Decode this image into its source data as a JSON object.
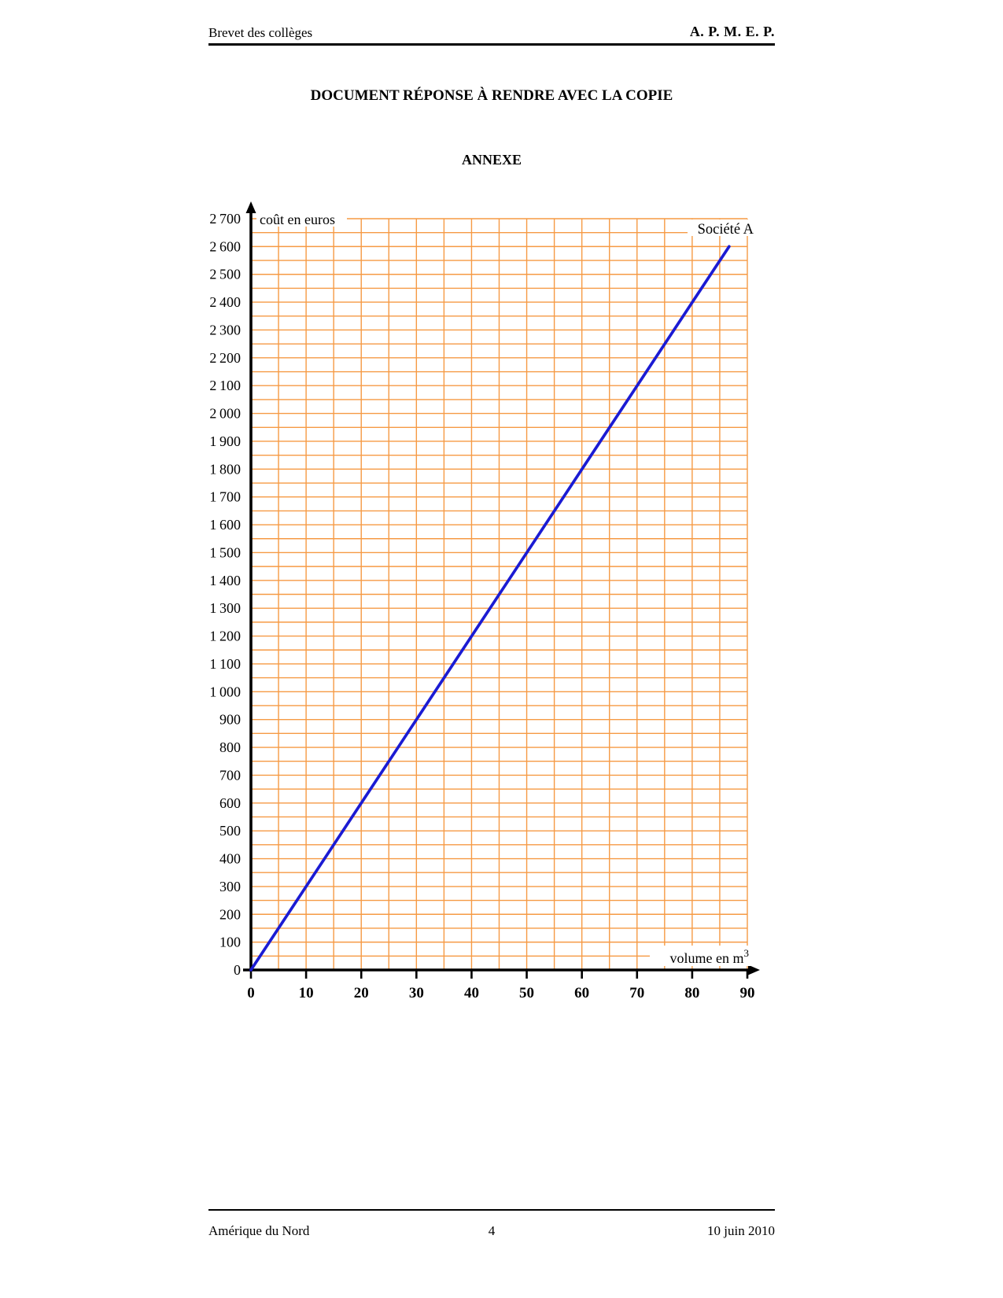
{
  "page": {
    "header": {
      "left": "Brevet des collèges",
      "right": "A. P. M. E. P."
    },
    "title": "DOCUMENT RÉPONSE À RENDRE AVEC LA COPIE",
    "subtitle": "ANNEXE",
    "footer": {
      "left": "Amérique du Nord",
      "page_number": "4",
      "right": "10 juin 2010"
    }
  },
  "chart_data": {
    "type": "line",
    "title": "",
    "ylabel": "coût en euros",
    "xlabel": "volume en m",
    "xlabel_superscript": "3",
    "xlim": [
      0,
      90
    ],
    "ylim": [
      0,
      2700
    ],
    "xtick_step": 10,
    "ytick_step": 100,
    "grid": {
      "visible": true,
      "color": "#f69a44",
      "x_minor_step": 5,
      "y_minor_step": 50
    },
    "axis_color": "#000000",
    "xtick_labels": [
      "0",
      "10",
      "20",
      "30",
      "40",
      "50",
      "60",
      "70",
      "80",
      "90"
    ],
    "ytick_labels": [
      "0",
      "100",
      "200",
      "300",
      "400",
      "500",
      "600",
      "700",
      "800",
      "900",
      "1 000",
      "1 100",
      "1 200",
      "1 300",
      "1 400",
      "1 500",
      "1 600",
      "1 700",
      "1 800",
      "1 900",
      "2 000",
      "2 100",
      "2 200",
      "2 300",
      "2 400",
      "2 500",
      "2 600",
      "2 700"
    ],
    "legend_position": "top-right-inline-label",
    "series": [
      {
        "name": "Société A",
        "color": "#1b1bd3",
        "x": [
          0,
          86.7
        ],
        "y": [
          0,
          2600
        ]
      }
    ]
  }
}
